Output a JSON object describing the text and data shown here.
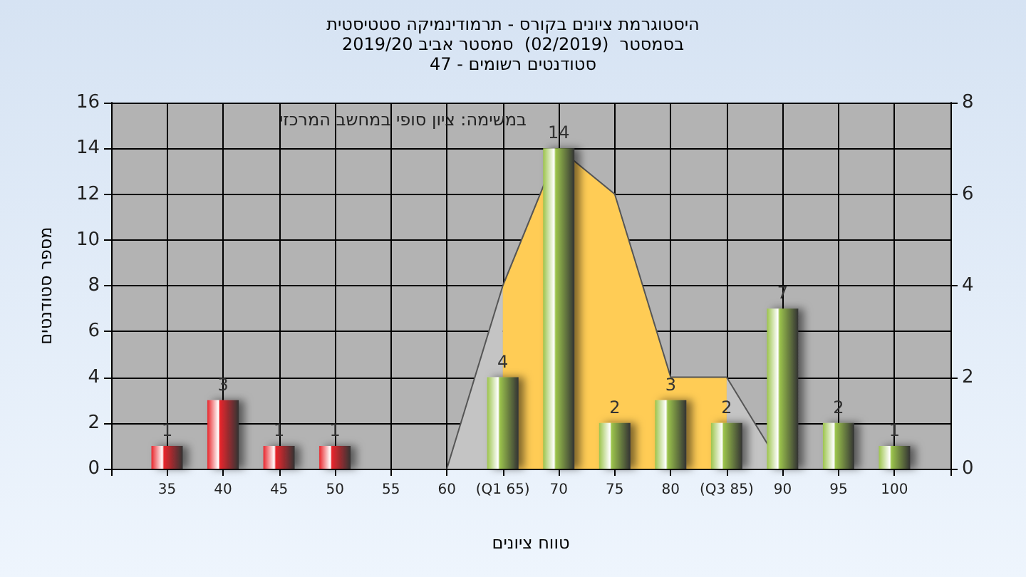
{
  "chart_data": {
    "type": "bar",
    "title": "היסטוגרמת ציונים בקורס - תרמודינמיקה סטטיסטית",
    "subtitle": "בסמסטר  (02/2019)  סמסטר אביב 2019/20\nסטודנטים רשומים - 47",
    "xlabel": "טווח ציונים",
    "ylabel": "מספר סטודנטים",
    "annotations": [
      "במשימה: ציון סופי במחשב המרכזי"
    ],
    "xlim": [
      30,
      105
    ],
    "xticks": [
      {
        "value": 30,
        "label": null
      },
      35,
      40,
      45,
      50,
      55,
      60,
      {
        "value": 65,
        "label": "(Q1 65)"
      },
      70,
      75,
      80,
      {
        "value": 85,
        "label": "(Q3 85)"
      },
      90,
      95,
      100,
      {
        "value": 105,
        "label": null
      }
    ],
    "ylim": [
      0,
      16
    ],
    "yticks": [
      0,
      2,
      4,
      6,
      8,
      10,
      12,
      14,
      16
    ],
    "y2lim": [
      0,
      8
    ],
    "y2ticks": [
      0,
      2,
      4,
      6,
      8
    ],
    "grid": true,
    "series": [
      {
        "type": "area",
        "axis": "y2",
        "color": "#c4c4c4",
        "x": [
          60,
          65
        ],
        "values": [
          0,
          4
        ]
      },
      {
        "type": "area",
        "axis": "y2",
        "color": "#c4c4c4",
        "x": [
          85,
          90
        ],
        "values": [
          2,
          0
        ]
      },
      {
        "type": "area",
        "axis": "y2",
        "color": "#ffcc55",
        "x": [
          65,
          70,
          75,
          80,
          85
        ],
        "values": [
          4,
          7,
          6,
          2,
          2
        ]
      },
      {
        "x": [
          35,
          40,
          45,
          50,
          65,
          70,
          75,
          80,
          85,
          90,
          95,
          100
        ],
        "values": [
          1,
          3,
          1,
          1,
          4,
          14,
          2,
          3,
          2,
          7,
          2,
          1
        ],
        "value_labels": [
          "1",
          "3",
          "1",
          "1",
          "4",
          "14",
          "2",
          "3",
          "2",
          "7",
          "2",
          "1"
        ],
        "colors": [
          "#e8262c",
          "#e8262c",
          "#e8262c",
          "#e8262c",
          "#9cc44c",
          "#9cc44c",
          "#9cc44c",
          "#9cc44c",
          "#9cc44c",
          "#9cc44c",
          "#9cc44c",
          "#9cc44c"
        ]
      }
    ]
  }
}
